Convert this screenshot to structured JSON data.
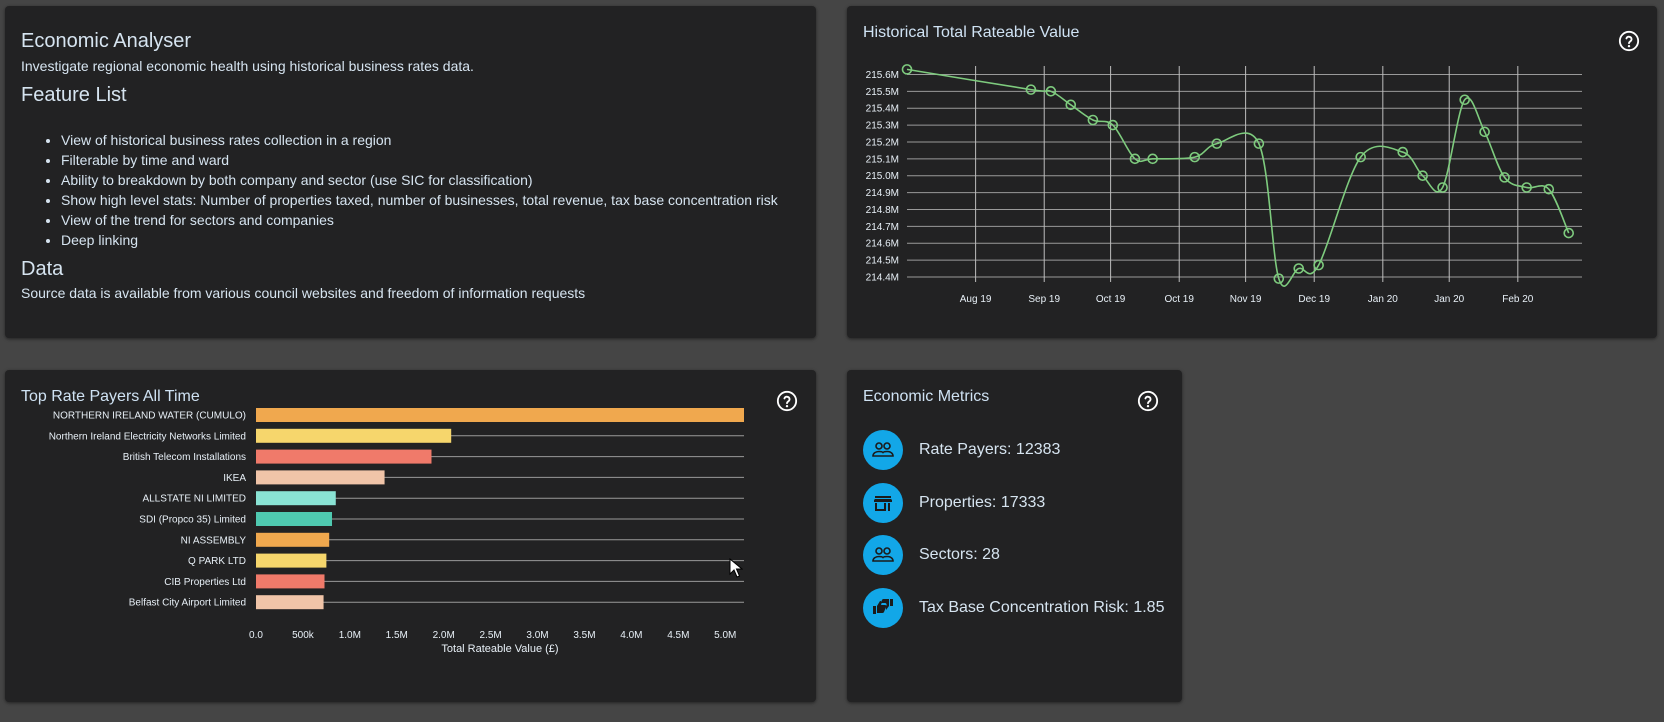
{
  "info": {
    "title": "Economic Analyser",
    "subtitle": "Investigate regional economic health using historical business rates data.",
    "feature_heading": "Feature List",
    "features": [
      "View of historical business rates collection in a region",
      "Filterable by time and ward",
      "Ability to breakdown by both company and sector (use SIC for classification)",
      "Show high level stats: Number of properties taxed, number of businesses, total revenue, tax base concentration risk",
      "View of the trend for sectors and companies",
      "Deep linking"
    ],
    "data_heading": "Data",
    "data_text": "Source data is available from various council websites and freedom of information requests"
  },
  "historical": {
    "title": "Historical Total Rateable Value",
    "help_icon": "help-circle-icon"
  },
  "top_payers": {
    "title": "Top Rate Payers All Time",
    "help_icon": "help-circle-icon"
  },
  "metrics": {
    "title": "Economic Metrics",
    "help_icon": "help-circle-icon",
    "items": [
      {
        "label": "Rate Payers: 12383",
        "icon": "people-icon"
      },
      {
        "label": "Properties: 17333",
        "icon": "store-icon"
      },
      {
        "label": "Sectors: 28",
        "icon": "people-icon"
      },
      {
        "label": "Tax Base Concentration Risk: 1.85",
        "icon": "thumbs-up-down-icon"
      }
    ],
    "accent": "#12a7e8"
  },
  "chart_data": [
    {
      "type": "line",
      "title": "Historical Total Rateable Value",
      "yticks": [
        "214.4M",
        "214.5M",
        "214.6M",
        "214.7M",
        "214.8M",
        "214.9M",
        "215.0M",
        "215.1M",
        "215.2M",
        "215.3M",
        "215.4M",
        "215.5M",
        "215.6M"
      ],
      "ylim": [
        214.37,
        215.65
      ],
      "xticks": [
        "Aug 19",
        "Sep 19",
        "Oct 19",
        "Oct 19",
        "Nov 19",
        "Dec 19",
        "Jan 20",
        "Jan 20",
        "Feb 20"
      ],
      "xtick_days": [
        31,
        62,
        92,
        123,
        153,
        184,
        215,
        245,
        276
      ],
      "xlim": [
        0,
        305
      ],
      "color": "#7ecb7e",
      "grid": true,
      "points": [
        {
          "x": 0,
          "y": 215.63
        },
        {
          "x": 56,
          "y": 215.51
        },
        {
          "x": 65,
          "y": 215.5
        },
        {
          "x": 74,
          "y": 215.42
        },
        {
          "x": 84,
          "y": 215.33
        },
        {
          "x": 93,
          "y": 215.3
        },
        {
          "x": 103,
          "y": 215.1
        },
        {
          "x": 111,
          "y": 215.1
        },
        {
          "x": 130,
          "y": 215.11
        },
        {
          "x": 140,
          "y": 215.19
        },
        {
          "x": 159,
          "y": 215.19
        },
        {
          "x": 168,
          "y": 214.39
        },
        {
          "x": 177,
          "y": 214.45
        },
        {
          "x": 186,
          "y": 214.47
        },
        {
          "x": 205,
          "y": 215.11
        },
        {
          "x": 224,
          "y": 215.14
        },
        {
          "x": 233,
          "y": 215.0
        },
        {
          "x": 242,
          "y": 214.93
        },
        {
          "x": 252,
          "y": 215.45
        },
        {
          "x": 261,
          "y": 215.26
        },
        {
          "x": 270,
          "y": 214.99
        },
        {
          "x": 280,
          "y": 214.93
        },
        {
          "x": 290,
          "y": 214.92
        },
        {
          "x": 299,
          "y": 214.66
        }
      ]
    },
    {
      "type": "bar",
      "orientation": "horizontal",
      "title": "Top Rate Payers All Time",
      "xlabel": "Total Rateable Value (£)",
      "xlim": [
        0,
        5200000
      ],
      "xticks": [
        {
          "v": 0,
          "label": "0.0"
        },
        {
          "v": 500000,
          "label": "500k"
        },
        {
          "v": 1000000,
          "label": "1.0M"
        },
        {
          "v": 1500000,
          "label": "1.5M"
        },
        {
          "v": 2000000,
          "label": "2.0M"
        },
        {
          "v": 2500000,
          "label": "2.5M"
        },
        {
          "v": 3000000,
          "label": "3.0M"
        },
        {
          "v": 3500000,
          "label": "3.5M"
        },
        {
          "v": 4000000,
          "label": "4.0M"
        },
        {
          "v": 4500000,
          "label": "4.5M"
        },
        {
          "v": 5000000,
          "label": "5.0M"
        }
      ],
      "categories": [
        "NORTHERN IRELAND WATER (CUMULO)",
        "Northern Ireland Electricity Networks Limited",
        "British Telecom Installations",
        "IKEA",
        "ALLSTATE NI LIMITED",
        "SDI (Propco 35) Limited",
        "NI ASSEMBLY",
        "Q PARK LTD",
        "CIB Properties Ltd",
        "Belfast City Airport Limited"
      ],
      "values": [
        5200000,
        2080000,
        1870000,
        1370000,
        850000,
        810000,
        780000,
        750000,
        730000,
        720000
      ],
      "colors": [
        "#f0a84e",
        "#f6d66c",
        "#f07a6a",
        "#f0c4a8",
        "#8ae3d4",
        "#4fc9b0",
        "#f0a84e",
        "#f6d66c",
        "#f07a6a",
        "#f0c4a8"
      ]
    }
  ]
}
